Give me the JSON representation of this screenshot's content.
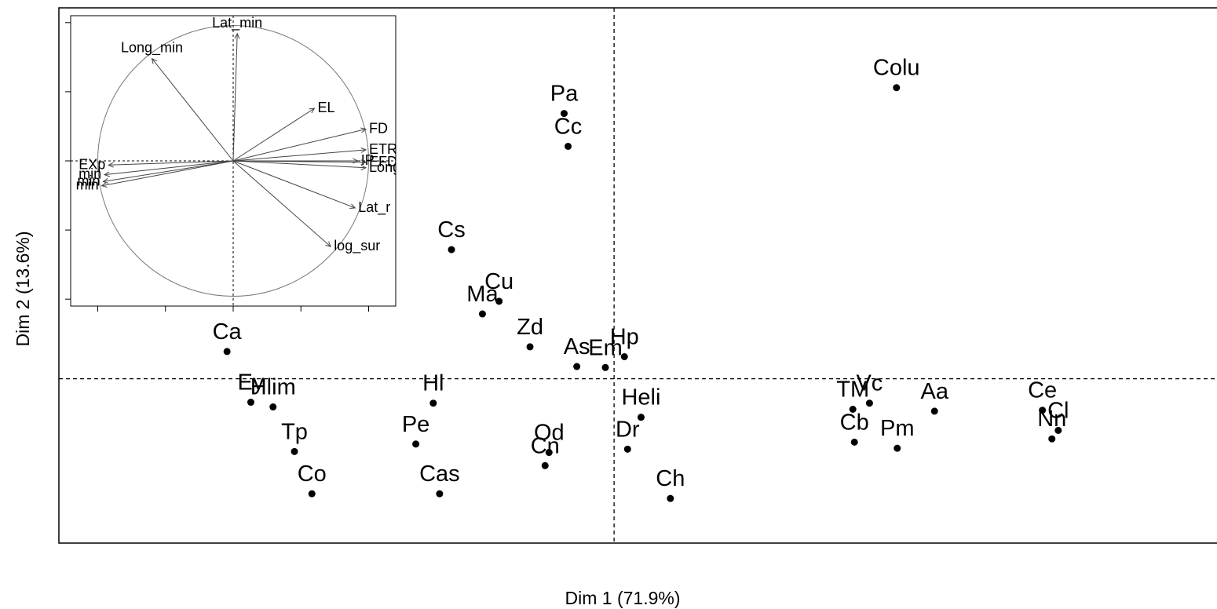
{
  "chart_data": [
    {
      "type": "scatter",
      "title": "",
      "xlabel": "Dim 1 (71.9%)",
      "ylabel": "Dim 2 (13.6%)",
      "xlim": [
        -7,
        7.75
      ],
      "ylim": [
        -3.5,
        7.9
      ],
      "reference_lines": {
        "x": 0,
        "y": 0
      },
      "points": [
        {
          "label": "Colu",
          "x": 3.56,
          "y": 6.2
        },
        {
          "label": "Pa",
          "x": -0.63,
          "y": 5.65
        },
        {
          "label": "Cc",
          "x": -0.58,
          "y": 4.95
        },
        {
          "label": "Cs",
          "x": -2.05,
          "y": 2.75
        },
        {
          "label": "Cu",
          "x": -1.45,
          "y": 1.65
        },
        {
          "label": "Ma",
          "x": -1.66,
          "y": 1.38
        },
        {
          "label": "Zd",
          "x": -1.06,
          "y": 0.68
        },
        {
          "label": "Ca",
          "x": -4.88,
          "y": 0.58
        },
        {
          "label": "As",
          "x": -0.47,
          "y": 0.26
        },
        {
          "label": "Em",
          "x": -0.11,
          "y": 0.24
        },
        {
          "label": "Hp",
          "x": 0.13,
          "y": 0.47
        },
        {
          "label": "Ey",
          "x": -4.58,
          "y": -0.5
        },
        {
          "label": "Hlim",
          "x": -4.3,
          "y": -0.6
        },
        {
          "label": "Hl",
          "x": -2.28,
          "y": -0.52
        },
        {
          "label": "Heli",
          "x": 0.34,
          "y": -0.82
        },
        {
          "label": "Tp",
          "x": -4.03,
          "y": -1.55
        },
        {
          "label": "Pe",
          "x": -2.5,
          "y": -1.39
        },
        {
          "label": "Od",
          "x": -0.82,
          "y": -1.57
        },
        {
          "label": "Cn",
          "x": -0.87,
          "y": -1.85
        },
        {
          "label": "Dr",
          "x": 0.17,
          "y": -1.5
        },
        {
          "label": "Co",
          "x": -3.81,
          "y": -2.45
        },
        {
          "label": "Cas",
          "x": -2.2,
          "y": -2.45
        },
        {
          "label": "Ch",
          "x": 0.71,
          "y": -2.55
        },
        {
          "label": "TM",
          "x": 3.01,
          "y": -0.65
        },
        {
          "label": "Vc",
          "x": 3.22,
          "y": -0.52
        },
        {
          "label": "Cb",
          "x": 3.03,
          "y": -1.35
        },
        {
          "label": "Pm",
          "x": 3.57,
          "y": -1.48
        },
        {
          "label": "Aa",
          "x": 4.04,
          "y": -0.69
        },
        {
          "label": "Ce",
          "x": 5.4,
          "y": -0.67
        },
        {
          "label": "Cl",
          "x": 5.6,
          "y": -1.1
        },
        {
          "label": "Nn",
          "x": 5.52,
          "y": -1.28
        }
      ]
    },
    {
      "type": "correlation-circle",
      "title": "",
      "xlim": [
        -1.2,
        1.2
      ],
      "ylim": [
        -1.05,
        1.05
      ],
      "variables": [
        {
          "label": "Lat_min",
          "x": 0.03,
          "y": 0.92
        },
        {
          "label": "Long_min",
          "x": -0.6,
          "y": 0.74
        },
        {
          "label": "EL",
          "x": 0.6,
          "y": 0.38
        },
        {
          "label": "FD",
          "x": 0.98,
          "y": 0.23
        },
        {
          "label": "ETR",
          "x": 0.98,
          "y": 0.08
        },
        {
          "label": "IP",
          "x": 0.92,
          "y": 0.0
        },
        {
          "label": "EFD",
          "x": 0.98,
          "y": -0.01
        },
        {
          "label": "Long",
          "x": 0.98,
          "y": -0.05
        },
        {
          "label": "Lat_r",
          "x": 0.9,
          "y": -0.34
        },
        {
          "label": "log_sur",
          "x": 0.72,
          "y": -0.62
        },
        {
          "label": "EXp",
          "x": -0.92,
          "y": -0.03
        },
        {
          "label": "min",
          "x": -0.95,
          "y": -0.1
        },
        {
          "label": "min",
          "x": -0.96,
          "y": -0.15
        },
        {
          "label": "min",
          "x": -0.97,
          "y": -0.18
        }
      ]
    }
  ]
}
